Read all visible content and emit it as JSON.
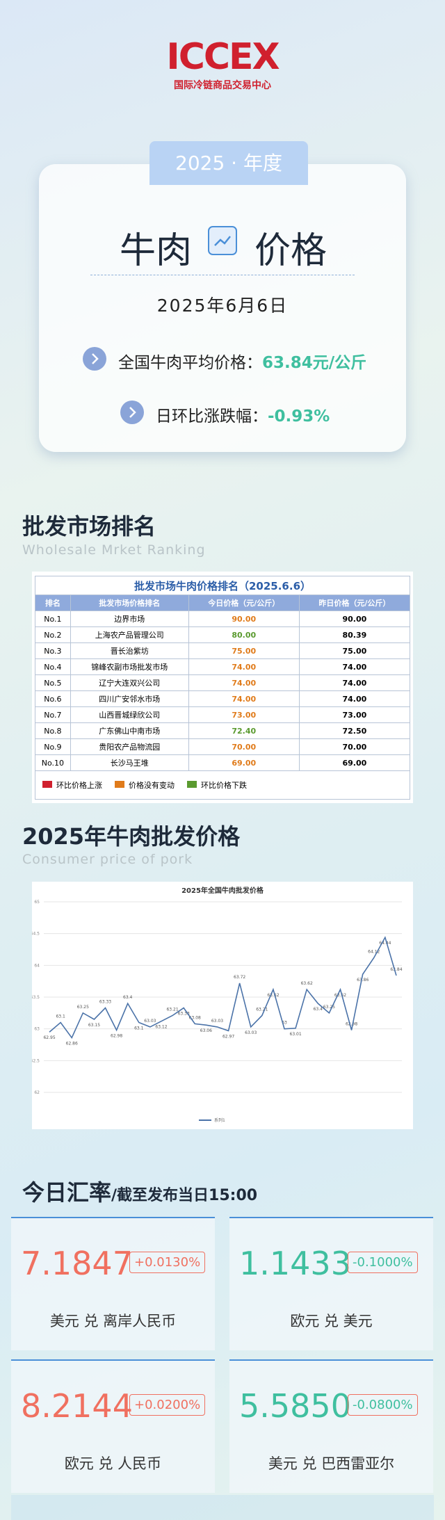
{
  "logo": {
    "name": "ICCEX",
    "subtitle": "国际冷链商品交易中心"
  },
  "hero": {
    "tab": "2025 · 年度",
    "title_left": "牛肉",
    "title_right": "价格",
    "date": "2025年6月6日",
    "avg_label": "全国牛肉平均价格：",
    "avg_value": "63.84元/公斤",
    "change_label": "日环比涨跌幅：",
    "change_value": "-0.93%"
  },
  "ranking": {
    "heading": "批发市场排名",
    "subheading": "Wholesale Mrket Ranking",
    "table": {
      "title": "批发市场牛肉价格排名（2025.6.6）",
      "header": [
        "排名",
        "批发市场价格排名",
        "今日价格（元/公斤）",
        "昨日价格（元/公斤）"
      ],
      "rows": [
        [
          "No.1",
          "边界市场",
          "90.00",
          "90.00"
        ],
        [
          "No.2",
          "上海农产品管理公司",
          "80.00",
          "80.39"
        ],
        [
          "No.3",
          "晋长治紫坊",
          "75.00",
          "75.00"
        ],
        [
          "No.4",
          "锦峰农副市场批发市场",
          "74.00",
          "74.00"
        ],
        [
          "No.5",
          "辽宁大连双兴公司",
          "74.00",
          "74.00"
        ],
        [
          "No.6",
          "四川广安邻水市场",
          "74.00",
          "74.00"
        ],
        [
          "No.7",
          "山西晋城绿欣公司",
          "73.00",
          "73.00"
        ],
        [
          "No.8",
          "广东佛山中南市场",
          "72.40",
          "72.50"
        ],
        [
          "No.9",
          "贵阳农产品物流园",
          "70.00",
          "70.00"
        ],
        [
          "No.10",
          "长沙马王堆",
          "69.00",
          "69.00"
        ]
      ],
      "today_colors": [
        "#e07b1a",
        "#5a9a2f",
        "#e07b1a",
        "#e07b1a",
        "#e07b1a",
        "#e07b1a",
        "#e07b1a",
        "#5a9a2f",
        "#e07b1a",
        "#e07b1a"
      ],
      "legend": [
        {
          "label": "环比价格上涨",
          "color": "#d0202e"
        },
        {
          "label": "价格没有变动",
          "color": "#e07b1a"
        },
        {
          "label": "环比价格下跌",
          "color": "#5a9a2f"
        }
      ]
    }
  },
  "price": {
    "heading": "2025年牛肉批发价格",
    "subheading": "Consumer price of pork"
  },
  "chart_data": {
    "type": "line",
    "title": "2025年全国牛肉批发价格",
    "categories": [
      null,
      null,
      null,
      null,
      null,
      null,
      null,
      null,
      null,
      null,
      null,
      null,
      null,
      null,
      null,
      null,
      null,
      null,
      null,
      null,
      null,
      null,
      null,
      null,
      null,
      null,
      null,
      null,
      null,
      null,
      null,
      null
    ],
    "series": [
      {
        "name": "系列1",
        "color": "#4a72a8",
        "values": [
          62.95,
          63.1,
          62.86,
          63.25,
          63.15,
          63.33,
          62.98,
          63.4,
          63.1,
          63.03,
          63.12,
          63.21,
          63.33,
          63.08,
          63.06,
          63.03,
          62.97,
          63.72,
          63.03,
          63.21,
          63.62,
          63,
          63.01,
          63.62,
          63.4,
          63.25,
          63.62,
          62.98,
          63.86,
          64.12,
          64.44,
          63.84
        ]
      }
    ],
    "ylim": [
      62,
      65
    ],
    "yticks": [
      62,
      62.5,
      63,
      63.5,
      64,
      64.5,
      65
    ],
    "grid": true,
    "legend": "bottom"
  },
  "fx": {
    "heading": "今日汇率",
    "subheading": "/截至发布当日15:00",
    "cards": [
      {
        "value": "7.1847",
        "change": "+0.0130%",
        "pair": "美元 兑 离岸人民币",
        "color": "#f07060"
      },
      {
        "value": "1.1433",
        "change": "-0.1000%",
        "pair": "欧元 兑 美元",
        "color": "#3fbf9f"
      },
      {
        "value": "8.2144",
        "change": "+0.0200%",
        "pair": "欧元 兑 人民币",
        "color": "#f07060"
      },
      {
        "value": "5.5850",
        "change": "-0.0800%",
        "pair": "美元 兑 巴西雷亚尔",
        "color": "#3fbf9f"
      }
    ]
  }
}
